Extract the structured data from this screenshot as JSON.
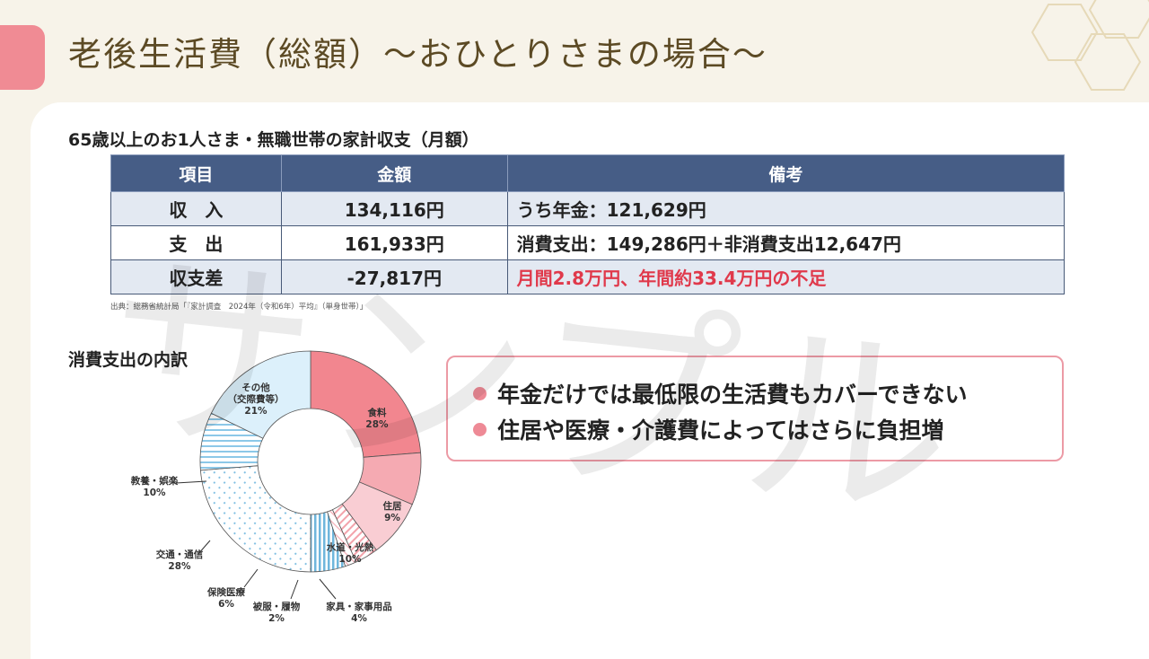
{
  "slide": {
    "title": "老後生活費（総額）〜おひとりさまの場合〜",
    "watermark": "サンプル"
  },
  "table_section": {
    "heading": "65歳以上のお1人さま・無職世帯の家計収支（月額）",
    "columns": [
      "項目",
      "金額",
      "備考"
    ],
    "rows": [
      {
        "item": "収　入",
        "amount": "134,116円",
        "note": "うち年金：121,629円"
      },
      {
        "item": "支　出",
        "amount": "161,933円",
        "note": "消費支出：149,286円＋非消費支出12,647円"
      },
      {
        "item": "収支差",
        "amount": "-27,817円",
        "note": "月間2.8万円、年間約33.4万円の不足"
      }
    ],
    "source": "出典：総務省統計局「『家計調査　2024年（令和6年）平均』（単身世帯）」"
  },
  "breakdown_section": {
    "heading": "消費支出の内訳"
  },
  "chart_data": {
    "type": "pie",
    "donut": true,
    "categories": [
      "食料",
      "住居",
      "水道・光熱",
      "家具・家事用品",
      "被服・履物",
      "保険医療",
      "交通・通信",
      "教養・娯楽",
      "その他（交際費等）"
    ],
    "values": [
      28,
      9,
      10,
      4,
      2,
      6,
      28,
      10,
      21
    ],
    "value_labels": [
      "28%",
      "9%",
      "10%",
      "4%",
      "2%",
      "6%",
      "28%",
      "10%",
      "21%"
    ],
    "colors": [
      "#f2868f",
      "#f5aab2",
      "#f9cdd3",
      "#f3b3ba",
      "#f8d2d7",
      "#8fc9e4",
      "#a7d6ee",
      "#9fcfea",
      "#dcf0fb"
    ]
  },
  "callout": {
    "items": [
      "年金だけでは最低限の生活費もカバーできない",
      "住居や医療・介護費によってはさらに負担増"
    ],
    "bullet_color": "#ee8a96"
  }
}
